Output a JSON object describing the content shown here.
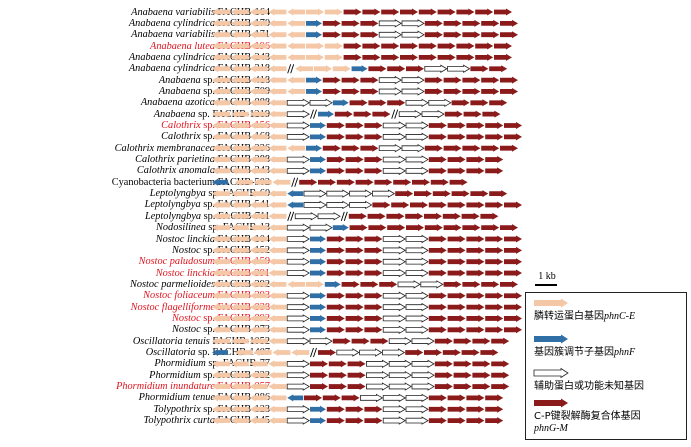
{
  "colors": {
    "transporter": "#f4c7a6",
    "regulator": "#2f6fa6",
    "unknown": "#ffffff",
    "lyase": "#8b1a1a",
    "highlight": "#e0141e",
    "text": "#000000"
  },
  "scale_bar": {
    "label": "1 kb"
  },
  "legend": {
    "items": [
      {
        "type": "transporter",
        "text": "膦转运蛋白基因",
        "gene": "phnC-E"
      },
      {
        "type": "regulator",
        "text": "基因簇调节子基因",
        "gene": "phnF"
      },
      {
        "type": "unknown",
        "text": "辅助蛋白或功能未知基因",
        "gene": ""
      },
      {
        "type": "lyase",
        "text": "C-P键裂解酶复合体基因",
        "gene": "phnG-M"
      }
    ]
  },
  "rows": [
    {
      "species": "Anabaena variabilis",
      "strain": "FACHB-164",
      "highlight": false,
      "genes": "TTTTTTTLLLLLLLLL"
    },
    {
      "species": "Anabaena cylindrica",
      "strain": "FACHB-170",
      "highlight": false,
      "genes": "TTTTTRLLLUULLLLL"
    },
    {
      "species": "Anabaena variabilis",
      "strain": "FACHB-171",
      "highlight": false,
      "genes": "TTTTTRLLLUULLLLL"
    },
    {
      "species": "Anabaena lutea",
      "strain": "FACHB-196",
      "highlight": true,
      "genes": "TTTTTTTLLLLLLLLL"
    },
    {
      "species": "Anabaena cylindrica",
      "strain": "FACHB-243",
      "highlight": false,
      "genes": "TTTTTTTLLLLLLLLL"
    },
    {
      "species": "Anabaena cylindrica",
      "strain": "FACHB-318",
      "highlight": false,
      "genes": "TTTT/TTTRLLLUULLLLL"
    },
    {
      "species": "Anabaena",
      "sp": true,
      "strain": "FACHB-418",
      "highlight": false,
      "genes": "TTTTTRLLLUULLLLL"
    },
    {
      "species": "Anabaena",
      "sp": true,
      "strain": "FACHB-709",
      "highlight": false,
      "genes": "TTTTTRLLLUULLLLL"
    },
    {
      "species": "Anabaena azotica",
      "strain": "FACHB-888",
      "highlight": false,
      "genes": "TTTTUURLLLUULLLL"
    },
    {
      "species": "Anabaena",
      "sp": true,
      "strain": "FACHB-1219",
      "highlight": false,
      "genes": "TTTTU/RLLL/UULLL"
    },
    {
      "species": "Calothrix",
      "sp": true,
      "strain": "FACHB-156",
      "highlight": true,
      "genes": "TTTTURLLLUULLLLL"
    },
    {
      "species": "Calothrix",
      "sp": true,
      "strain": "FACHB-168",
      "highlight": false,
      "genes": "TTTTURLLLUULLLLL"
    },
    {
      "species": "Calothrix membranacea",
      "strain": "FACHB-236",
      "highlight": false,
      "genes": "TTTTTRLLLUULLLLL"
    },
    {
      "species": "Calothrix parietina",
      "strain": "FACHB-288",
      "highlight": false,
      "genes": "TTTTURLLLUULLLL"
    },
    {
      "species": "Calothrix anomala",
      "strain": "FACHB-343",
      "highlight": false,
      "genes": "TTTTURLLLUULLLL"
    },
    {
      "species": "Cyanobacteria bacterium",
      "strain": "FACHB-502",
      "plain": true,
      "highlight": false,
      "genes": "R TTT/LLLLLLLLL"
    },
    {
      "species": "Leptolyngbya",
      "sp": true,
      "strain": "FACHB-60",
      "highlight": false,
      "genes": "TTTTRUUUULLLLLLLL"
    },
    {
      "species": "Leptolyngbya",
      "sp": true,
      "strain": "FACHB-541",
      "highlight": false,
      "genes": "TTTTRUUULLLLLLLLR"
    },
    {
      "species": "Leptolyngbya",
      "sp": true,
      "strain": "FACHB-711",
      "highlight": false,
      "genes": "TTTT/UU/LLLLLLLL"
    },
    {
      "species": "Nodosilinea",
      "sp": true,
      "strain": "FACHB-13",
      "highlight": false,
      "genes": "TTTTUURLLLLLLLLL"
    },
    {
      "species": "Nostoc linckia",
      "strain": "FACHB-104",
      "highlight": false,
      "genes": "TTTTURLLLUULLLLL"
    },
    {
      "species": "Nostoc",
      "sp": true,
      "strain": "FACHB-152",
      "highlight": false,
      "genes": "TTTTURLLLUULLLLL"
    },
    {
      "species": "Nostoc paludosum",
      "strain": "FACHB-159",
      "highlight": true,
      "genes": "TTTTURLLLUULLLLL"
    },
    {
      "species": "Nostoc linckia",
      "strain": "FACHB-391",
      "highlight": true,
      "genes": "TTTTURLLLUULLLLL"
    },
    {
      "species": "Nostoc parmelioides",
      "strain": "FACHB-392",
      "highlight": false,
      "genes": "TTTTTTRLLLUULLLLL"
    },
    {
      "species": "Nostoc foliaceum",
      "strain": "FACHB-393",
      "highlight": true,
      "genes": "TTTTURLLLUULLLLL"
    },
    {
      "species": "Nostoc flagelliforme",
      "strain": "FACHB-838",
      "highlight": true,
      "genes": "TTTTURLLLUULLLLL"
    },
    {
      "species": "Nostoc",
      "sp": true,
      "strain": "FACHB-892",
      "highlight": true,
      "genes": "TTTTURLLLUULLLLL"
    },
    {
      "species": "Nostoc",
      "sp": true,
      "strain": "FACHB-973",
      "highlight": false,
      "genes": "TTTTURLLLUULLLLL"
    },
    {
      "species": "Oscillatoria tenuis",
      "strain": "FACHB-1052",
      "highlight": false,
      "genes": "TTTTUULLLUULLLLLL"
    },
    {
      "species": "Oscillatoria",
      "sp": true,
      "strain": "FACHB-1407",
      "highlight": false,
      "genes": "R TTTT/LUUULLLLL"
    },
    {
      "species": "Phormidium",
      "sp": true,
      "strain": "FACHB-77",
      "highlight": false,
      "genes": "TTTTULLLUUULLLL"
    },
    {
      "species": "Phormidium",
      "sp": true,
      "strain": "FACHB-322",
      "highlight": false,
      "genes": "TTTTULLLUUULLLL"
    },
    {
      "species": "Phormidium inundature",
      "strain": "FACHB-857",
      "highlight": true,
      "genes": "TTTTULLLUUULLLL"
    },
    {
      "species": "Phormidium tenue",
      "strain": "FACHB-886",
      "highlight": false,
      "genes": "TTTTRLLLUUULLLL"
    },
    {
      "species": "Tolypothrix",
      "sp": true,
      "strain": "FACHB-123",
      "highlight": false,
      "genes": "TTTTURLLLUULLLL"
    },
    {
      "species": "Tolypothrix curta",
      "strain": "FACHB-145",
      "highlight": false,
      "genes": "TTTTURLLLUULLLL"
    }
  ]
}
